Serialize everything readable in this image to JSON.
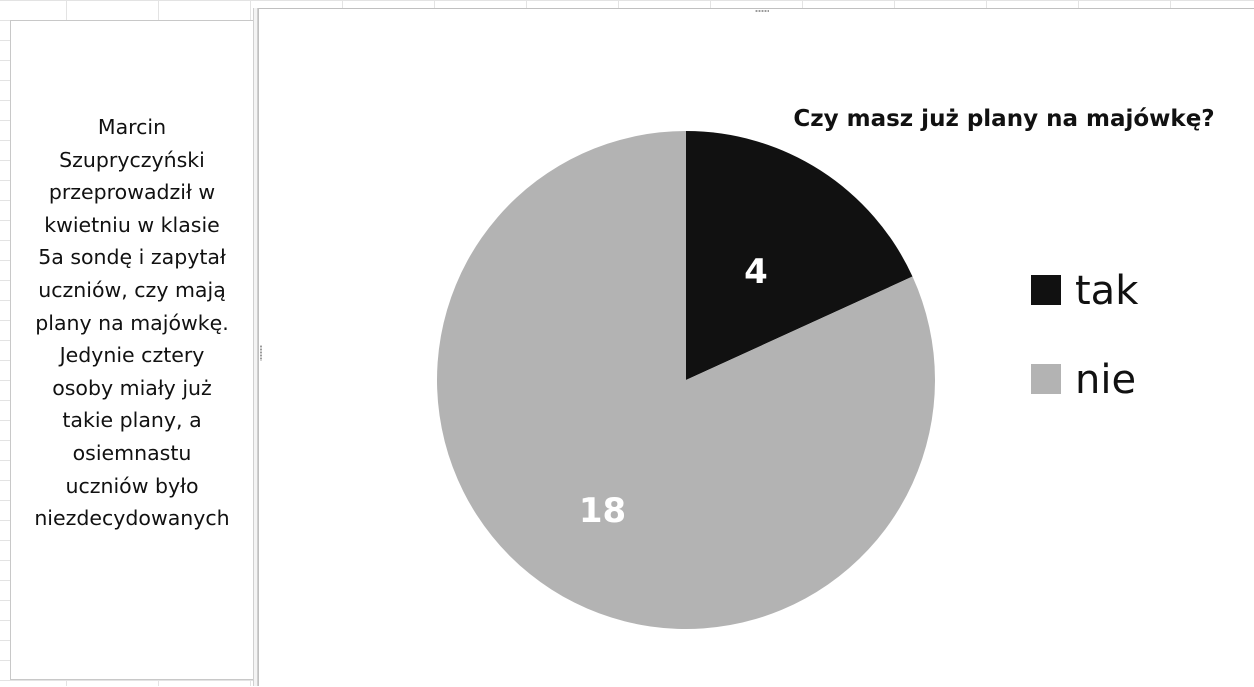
{
  "text_box": {
    "lines": [
      "Marcin",
      "Szupryczyński",
      "przeprowadził w",
      "kwietniu w klasie",
      "5a sondę i zapytał",
      "uczniów, czy mają",
      "plany na majówkę.",
      "Jedynie cztery",
      "osoby miały już",
      "takie plany, a",
      "osiemnastu",
      "uczniów było",
      "niezdecydowanych"
    ]
  },
  "chart_data": {
    "type": "pie",
    "title": "Czy masz już plany na majówkę?",
    "categories": [
      "tak",
      "nie"
    ],
    "values": [
      4,
      18
    ],
    "colors": [
      "#111111",
      "#b3b3b3"
    ],
    "data_labels": [
      "4",
      "18"
    ],
    "start_angle": "12 o'clock",
    "direction": "clockwise",
    "legend": {
      "position": "right",
      "entries": [
        "tak",
        "nie"
      ]
    }
  }
}
